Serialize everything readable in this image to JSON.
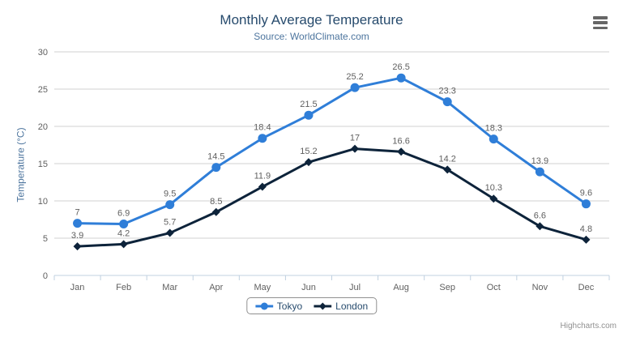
{
  "chart_data": {
    "type": "line",
    "title": "Monthly Average Temperature",
    "subtitle": "Source: WorldClimate.com",
    "categories": [
      "Jan",
      "Feb",
      "Mar",
      "Apr",
      "May",
      "Jun",
      "Jul",
      "Aug",
      "Sep",
      "Oct",
      "Nov",
      "Dec"
    ],
    "series": [
      {
        "name": "Tokyo",
        "color": "#2f7ed8",
        "marker": "circle",
        "values": [
          7,
          6.9,
          9.5,
          14.5,
          18.4,
          21.5,
          25.2,
          26.5,
          23.3,
          18.3,
          13.9,
          9.6
        ]
      },
      {
        "name": "London",
        "color": "#0d233a",
        "marker": "diamond",
        "values": [
          3.9,
          4.2,
          5.7,
          8.5,
          11.9,
          15.2,
          17,
          16.6,
          14.2,
          10.3,
          6.6,
          4.8
        ]
      }
    ],
    "xlabel": "",
    "ylabel": "Temperature (°C)",
    "ylim": [
      0,
      30
    ],
    "y_ticks": [
      0,
      5,
      10,
      15,
      20,
      25,
      30
    ],
    "grid": true,
    "data_labels": true,
    "legend_position": "bottom-center"
  },
  "toolbar": {
    "context_menu_icon": "hamburger-menu"
  },
  "credits": {
    "label": "Highcharts.com"
  },
  "colors": {
    "title_text": "#274b6d",
    "subtitle_text": "#4d759e",
    "axis_title_text": "#4d759e",
    "axis_label_text": "#606060",
    "data_label_text": "#606060",
    "legend_text": "#274b6d",
    "grid_line": "#d0d0d0",
    "axis_line": "#c0d0e0",
    "menu_icon": "#666666",
    "credits_text": "#909090",
    "background": "#ffffff"
  }
}
